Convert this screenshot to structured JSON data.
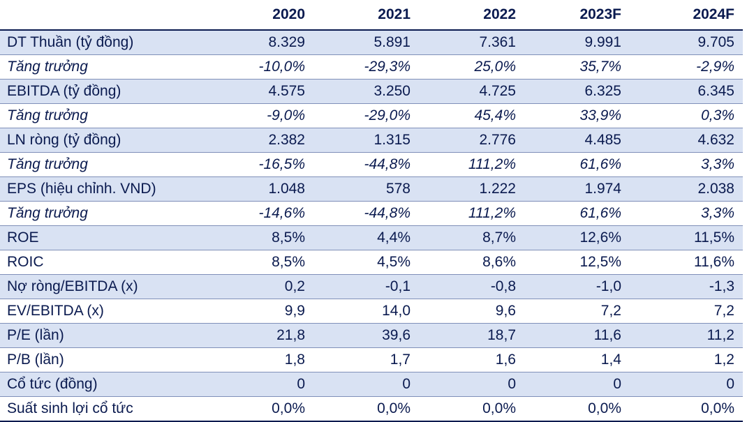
{
  "table": {
    "corner_header": "",
    "columns": [
      "2020",
      "2021",
      "2022",
      "2023F",
      "2024F"
    ],
    "rows": [
      {
        "label": "DT Thuần (tỷ đồng)",
        "values": [
          "8.329",
          "5.891",
          "7.361",
          "9.991",
          "9.705"
        ],
        "italic": false
      },
      {
        "label": "Tăng trưởng",
        "values": [
          "-10,0%",
          "-29,3%",
          "25,0%",
          "35,7%",
          "-2,9%"
        ],
        "italic": true
      },
      {
        "label": "EBITDA (tỷ đồng)",
        "values": [
          "4.575",
          "3.250",
          "4.725",
          "6.325",
          "6.345"
        ],
        "italic": false
      },
      {
        "label": "Tăng trưởng",
        "values": [
          "-9,0%",
          "-29,0%",
          "45,4%",
          "33,9%",
          "0,3%"
        ],
        "italic": true
      },
      {
        "label": "LN ròng (tỷ đồng)",
        "values": [
          "2.382",
          "1.315",
          "2.776",
          "4.485",
          "4.632"
        ],
        "italic": false
      },
      {
        "label": "Tăng trưởng",
        "values": [
          "-16,5%",
          "-44,8%",
          "111,2%",
          "61,6%",
          "3,3%"
        ],
        "italic": true
      },
      {
        "label": "EPS (hiệu chỉnh. VND)",
        "values": [
          "1.048",
          "578",
          "1.222",
          "1.974",
          "2.038"
        ],
        "italic": false
      },
      {
        "label": "Tăng trưởng",
        "values": [
          "-14,6%",
          "-44,8%",
          "111,2%",
          "61,6%",
          "3,3%"
        ],
        "italic": true
      },
      {
        "label": "ROE",
        "values": [
          "8,5%",
          "4,4%",
          "8,7%",
          "12,6%",
          "11,5%"
        ],
        "italic": false
      },
      {
        "label": "ROIC",
        "values": [
          "8,5%",
          "4,5%",
          "8,6%",
          "12,5%",
          "11,6%"
        ],
        "italic": false
      },
      {
        "label": "Nợ ròng/EBITDA (x)",
        "values": [
          "0,2",
          "-0,1",
          "-0,8",
          "-1,0",
          "-1,3"
        ],
        "italic": false
      },
      {
        "label": "EV/EBITDA (x)",
        "values": [
          "9,9",
          "14,0",
          "9,6",
          "7,2",
          "7,2"
        ],
        "italic": false
      },
      {
        "label": "P/E (lần)",
        "values": [
          "21,8",
          "39,6",
          "18,7",
          "11,6",
          "11,2"
        ],
        "italic": false
      },
      {
        "label": "P/B (lần)",
        "values": [
          "1,8",
          "1,7",
          "1,6",
          "1,4",
          "1,2"
        ],
        "italic": false
      },
      {
        "label": "Cổ tức (đồng)",
        "values": [
          "0",
          "0",
          "0",
          "0",
          "0"
        ],
        "italic": false
      },
      {
        "label": "Suất sinh lợi cổ tức",
        "values": [
          "0,0%",
          "0,0%",
          "0,0%",
          "0,0%",
          "0,0%"
        ],
        "italic": false
      }
    ]
  },
  "colors": {
    "text": "#0a1a4f",
    "shaded_row": "#d9e2f3",
    "plain_row": "#ffffff",
    "rule": "#0a1a4f"
  }
}
